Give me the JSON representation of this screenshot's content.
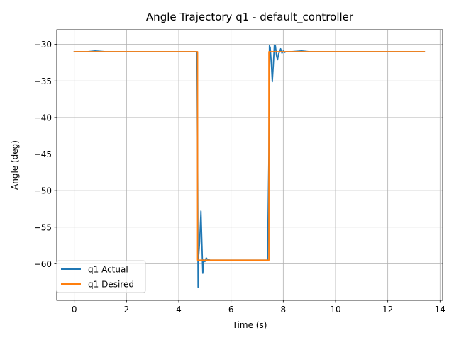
{
  "chart_data": {
    "type": "line",
    "title": "Angle Trajectory q1 - default_controller",
    "xlabel": "Time (s)",
    "ylabel": "Angle (deg)",
    "xlim": [
      -0.67,
      14.1
    ],
    "ylim": [
      -65.0,
      -28.0
    ],
    "xticks": [
      0,
      2,
      4,
      6,
      8,
      10,
      12,
      14
    ],
    "yticks": [
      -60,
      -55,
      -50,
      -45,
      -40,
      -35,
      -30
    ],
    "grid": true,
    "legend_position": "lower-left",
    "series": [
      {
        "name": "q1 Actual",
        "color": "#1f77b4",
        "x": [
          0,
          0.5,
          0.8,
          1.2,
          2.0,
          3.0,
          3.5,
          4.0,
          4.6,
          4.7,
          4.72,
          4.74,
          4.76,
          4.8,
          4.85,
          4.88,
          4.92,
          4.96,
          5.0,
          5.05,
          5.1,
          5.2,
          5.4,
          6.0,
          7.0,
          7.4,
          7.45,
          7.47,
          7.5,
          7.55,
          7.58,
          7.62,
          7.66,
          7.7,
          7.74,
          7.78,
          7.82,
          7.86,
          7.9,
          7.95,
          8.0,
          8.05,
          8.1,
          8.3,
          8.7,
          9.0,
          9.5,
          10.0,
          10.5,
          11.0,
          12.0,
          13.0,
          13.4
        ],
        "y": [
          -31.0,
          -31.0,
          -30.9,
          -31.0,
          -31.0,
          -31.0,
          -31.0,
          -31.0,
          -31.0,
          -31.0,
          -45.0,
          -63.2,
          -59.0,
          -57.0,
          -52.8,
          -56.5,
          -61.3,
          -59.4,
          -59.7,
          -59.2,
          -59.4,
          -59.5,
          -59.5,
          -59.5,
          -59.5,
          -59.5,
          -45.0,
          -30.2,
          -30.4,
          -33.0,
          -35.1,
          -32.8,
          -30.1,
          -30.2,
          -31.5,
          -32.1,
          -31.3,
          -31.0,
          -30.6,
          -31.2,
          -30.9,
          -31.1,
          -31.0,
          -31.0,
          -30.9,
          -31.0,
          -31.0,
          -31.0,
          -31.0,
          -31.0,
          -31.0,
          -31.0,
          -31.0
        ]
      },
      {
        "name": "q1 Desired",
        "color": "#ff7f0e",
        "x": [
          0,
          4.72,
          4.72,
          7.45,
          7.45,
          13.4
        ],
        "y": [
          -31.0,
          -31.0,
          -59.5,
          -59.5,
          -31.0,
          -31.0
        ]
      }
    ]
  }
}
